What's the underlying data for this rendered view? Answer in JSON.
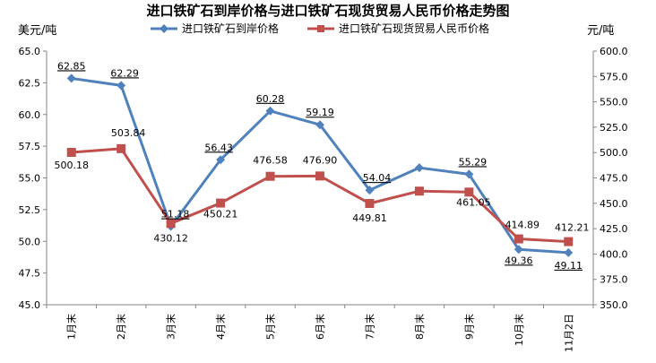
{
  "chart_data": {
    "type": "line",
    "title": "进口铁矿石到岸价格与进口铁矿石现货贸易人民币价格走势图",
    "y_left_unit": "美元/吨",
    "y_right_unit": "元/吨",
    "categories": [
      "1月末",
      "2月末",
      "3月末",
      "4月末",
      "5月末",
      "6月末",
      "7月末",
      "8月末",
      "9月末",
      "10月末",
      "11月2日"
    ],
    "y_left": {
      "min": 45.0,
      "max": 65.0,
      "step": 2.5,
      "ticks": [
        "45.0",
        "47.5",
        "50.0",
        "52.5",
        "55.0",
        "57.5",
        "60.0",
        "62.5",
        "65.0"
      ]
    },
    "y_right": {
      "min": 350.0,
      "max": 600.0,
      "step": 25.0,
      "ticks": [
        "350.0",
        "375.0",
        "400.0",
        "425.0",
        "450.0",
        "475.0",
        "500.0",
        "525.0",
        "550.0",
        "575.0",
        "600.0"
      ]
    },
    "grid": false,
    "legend_position": "top",
    "series": [
      {
        "name": "进口铁矿石到岸价格",
        "axis": "left",
        "color": "#4f81bd",
        "marker": "diamond",
        "values": [
          62.85,
          62.29,
          51.18,
          56.43,
          60.28,
          59.19,
          54.04,
          55.8,
          55.29,
          49.36,
          49.11
        ],
        "labels": [
          "62.85",
          "62.29",
          "51.18",
          "56.43",
          "60.28",
          "59.19",
          "54.04",
          "",
          "55.29",
          "49.36",
          "49.11"
        ]
      },
      {
        "name": "进口铁矿石现货贸易人民币价格",
        "axis": "right",
        "color": "#c0504d",
        "marker": "square",
        "values": [
          500.18,
          503.84,
          430.12,
          450.21,
          476.58,
          476.9,
          449.81,
          462.0,
          461.05,
          414.89,
          412.21
        ],
        "labels": [
          "500.18",
          "503.84",
          "430.12",
          "450.21",
          "476.58",
          "476.90",
          "449.81",
          "",
          "461.05",
          "414.89",
          "412.21"
        ]
      }
    ]
  }
}
